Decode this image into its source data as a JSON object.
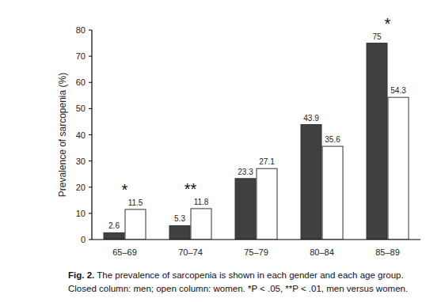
{
  "chart_data": {
    "type": "bar",
    "y_label": "Prevalence of sarcopenia (%)",
    "categories": [
      "65–69",
      "70–74",
      "75–79",
      "80–84",
      "85–89"
    ],
    "series": [
      {
        "color": "#404040",
        "values": [
          2.6,
          5.3,
          23.3,
          43.9,
          75
        ]
      },
      {
        "color": "#ffffff",
        "values": [
          11.5,
          11.8,
          27.1,
          35.6,
          54.3
        ]
      }
    ],
    "ylim": [
      0,
      80
    ],
    "yticks": [
      0,
      10,
      20,
      30,
      40,
      50,
      60,
      70,
      80
    ],
    "grid": false,
    "data_labels": true,
    "annotations": [
      {
        "category": "65–69",
        "text": "*"
      },
      {
        "category": "70–74",
        "text": "**"
      },
      {
        "category": "85–89",
        "text": "*"
      }
    ],
    "caption_label": "Fig. 2.",
    "caption": [
      "The prevalence of sarcopenia is shown in each gender and each age group.",
      "Closed column: men; open column: women. *P < .05, **P < .01, men versus women."
    ]
  }
}
